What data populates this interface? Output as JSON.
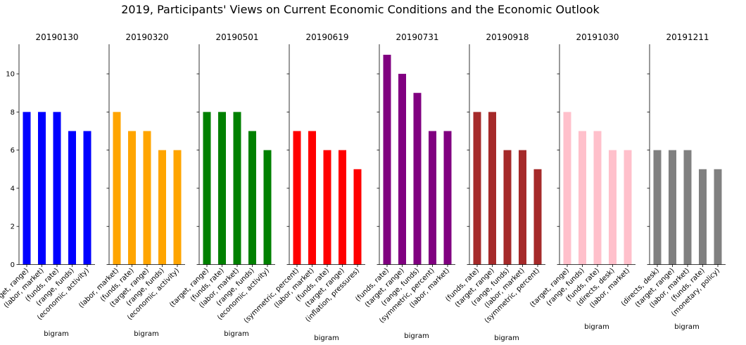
{
  "title": "2019, Participants' Views on Current Economic Conditions and the Economic Outlook",
  "chart_data": {
    "type": "bar",
    "ylim": [
      0,
      11.55
    ],
    "yticks": [
      0,
      2,
      4,
      6,
      8,
      10
    ],
    "grid": false,
    "legend": "none",
    "panels": [
      {
        "title": "20190130",
        "color": "#0000ff",
        "xlabel": "bigram",
        "categories": [
          "(target, range)",
          "(labor, market)",
          "(funds, rate)",
          "(range, funds)",
          "(economic, activity)"
        ],
        "values": [
          8,
          8,
          8,
          7,
          7
        ]
      },
      {
        "title": "20190320",
        "color": "#ffa500",
        "xlabel": "bigram",
        "categories": [
          "(labor, market)",
          "(funds, rate)",
          "(target, range)",
          "(range, funds)",
          "(economic, activity)"
        ],
        "values": [
          8,
          7,
          7,
          6,
          6
        ]
      },
      {
        "title": "20190501",
        "color": "#008000",
        "xlabel": "bigram",
        "categories": [
          "(target, range)",
          "(funds, rate)",
          "(labor, market)",
          "(range, funds)",
          "(economic, activity)"
        ],
        "values": [
          8,
          8,
          8,
          7,
          6
        ]
      },
      {
        "title": "20190619",
        "color": "#ff0000",
        "xlabel": "bigram",
        "categories": [
          "(symmetric, percent)",
          "(labor, market)",
          "(funds, rate)",
          "(target, range)",
          "(inflation, pressures)"
        ],
        "values": [
          7,
          7,
          6,
          6,
          5
        ]
      },
      {
        "title": "20190731",
        "color": "#800080",
        "xlabel": "bigram",
        "categories": [
          "(funds, rate)",
          "(target, range)",
          "(range, funds)",
          "(symmetric, percent)",
          "(labor, market)"
        ],
        "values": [
          11,
          10,
          9,
          7,
          7
        ]
      },
      {
        "title": "20190918",
        "color": "#a52a2a",
        "xlabel": "bigram",
        "categories": [
          "(funds, rate)",
          "(target, range)",
          "(range, funds)",
          "(labor, market)",
          "(symmetric, percent)"
        ],
        "values": [
          8,
          8,
          6,
          6,
          5
        ]
      },
      {
        "title": "20191030",
        "color": "#ffc0cb",
        "xlabel": "bigram",
        "categories": [
          "(target, range)",
          "(range, funds)",
          "(funds, rate)",
          "(directs, desk)",
          "(labor, market)"
        ],
        "values": [
          8,
          7,
          7,
          6,
          6
        ]
      },
      {
        "title": "20191211",
        "color": "#808080",
        "xlabel": "bigram",
        "categories": [
          "(directs, desk)",
          "(target, range)",
          "(labor, market)",
          "(funds, rate)",
          "(monetary, policy)"
        ],
        "values": [
          6,
          6,
          6,
          5,
          5
        ]
      }
    ]
  }
}
